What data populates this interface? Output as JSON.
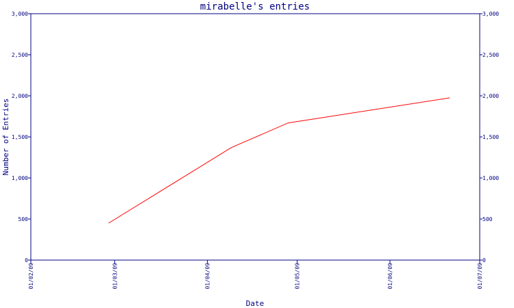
{
  "chart_data": {
    "type": "line",
    "title": "mirabelle's entries",
    "xlabel": "Date",
    "ylabel": "Number of Entries",
    "x_ticks": [
      "01/02/09",
      "01/03/09",
      "01/04/09",
      "01/05/09",
      "01/06/09",
      "01/07/09"
    ],
    "y_ticks": [
      "0",
      "500",
      "1,000",
      "1,500",
      "2,000",
      "2,500",
      "3,000"
    ],
    "ylim": [
      0,
      3000
    ],
    "grid": false,
    "series": [
      {
        "color": "#ff0000",
        "points": [
          {
            "x": "2009-02-27",
            "y": 450
          },
          {
            "x": "2009-04-09",
            "y": 1370
          },
          {
            "x": "2009-04-28",
            "y": 1670
          },
          {
            "x": "2009-06-21",
            "y": 1975
          }
        ]
      }
    ]
  },
  "colors": {
    "axis": "#000080",
    "line": "#ff0000",
    "background": "#ffffff"
  }
}
